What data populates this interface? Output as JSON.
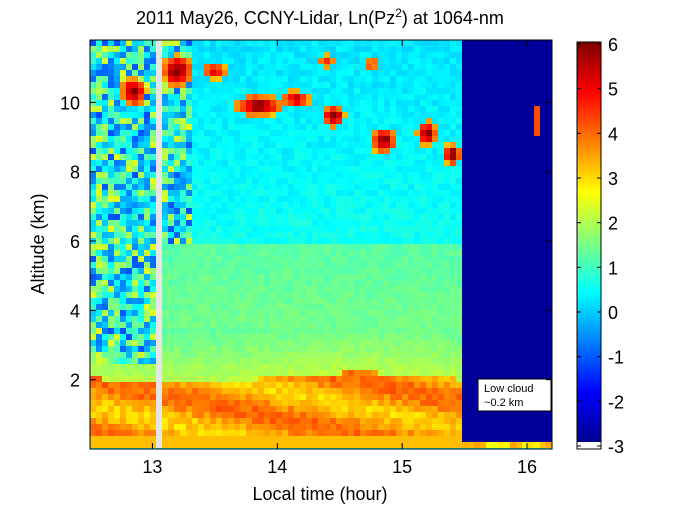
{
  "chart_data": {
    "type": "heatmap",
    "title": "2011 May26, CCNY-Lidar, Ln(Pz",
    "title_superscript": "2",
    "title_suffix": ") at 1064-nm",
    "xlabel": "Local time (hour)",
    "ylabel": "Altitude (km)",
    "xlim": [
      12.5,
      16.2
    ],
    "ylim": [
      0,
      11.8
    ],
    "xticks": [
      13,
      14,
      15,
      16
    ],
    "yticks": [
      2,
      4,
      6,
      8,
      10
    ],
    "colorbar": {
      "min": -3,
      "max": 6,
      "ticks": [
        6,
        5,
        4,
        3,
        2,
        1,
        0,
        -1,
        -2,
        -3
      ],
      "colormap": "jet"
    },
    "annotation": {
      "lines": [
        "Low cloud",
        "~0.2 km"
      ]
    },
    "features": [
      {
        "name": "boundary layer",
        "x_range": [
          12.5,
          15.5
        ],
        "altitude_km": [
          0.3,
          2.1
        ],
        "value": 4
      },
      {
        "name": "cirrus",
        "x_range": [
          12.6,
          15.5
        ],
        "altitude_km": [
          8.5,
          11.5
        ],
        "value": 5.5
      },
      {
        "name": "cloud-blocked region",
        "x_range": [
          15.5,
          16.2
        ],
        "altitude_km": [
          0.2,
          11.8
        ],
        "value": -3
      },
      {
        "name": "low cloud",
        "x_range": [
          15.5,
          16.2
        ],
        "altitude_km": [
          0.1,
          0.3
        ],
        "value": 3
      }
    ]
  }
}
